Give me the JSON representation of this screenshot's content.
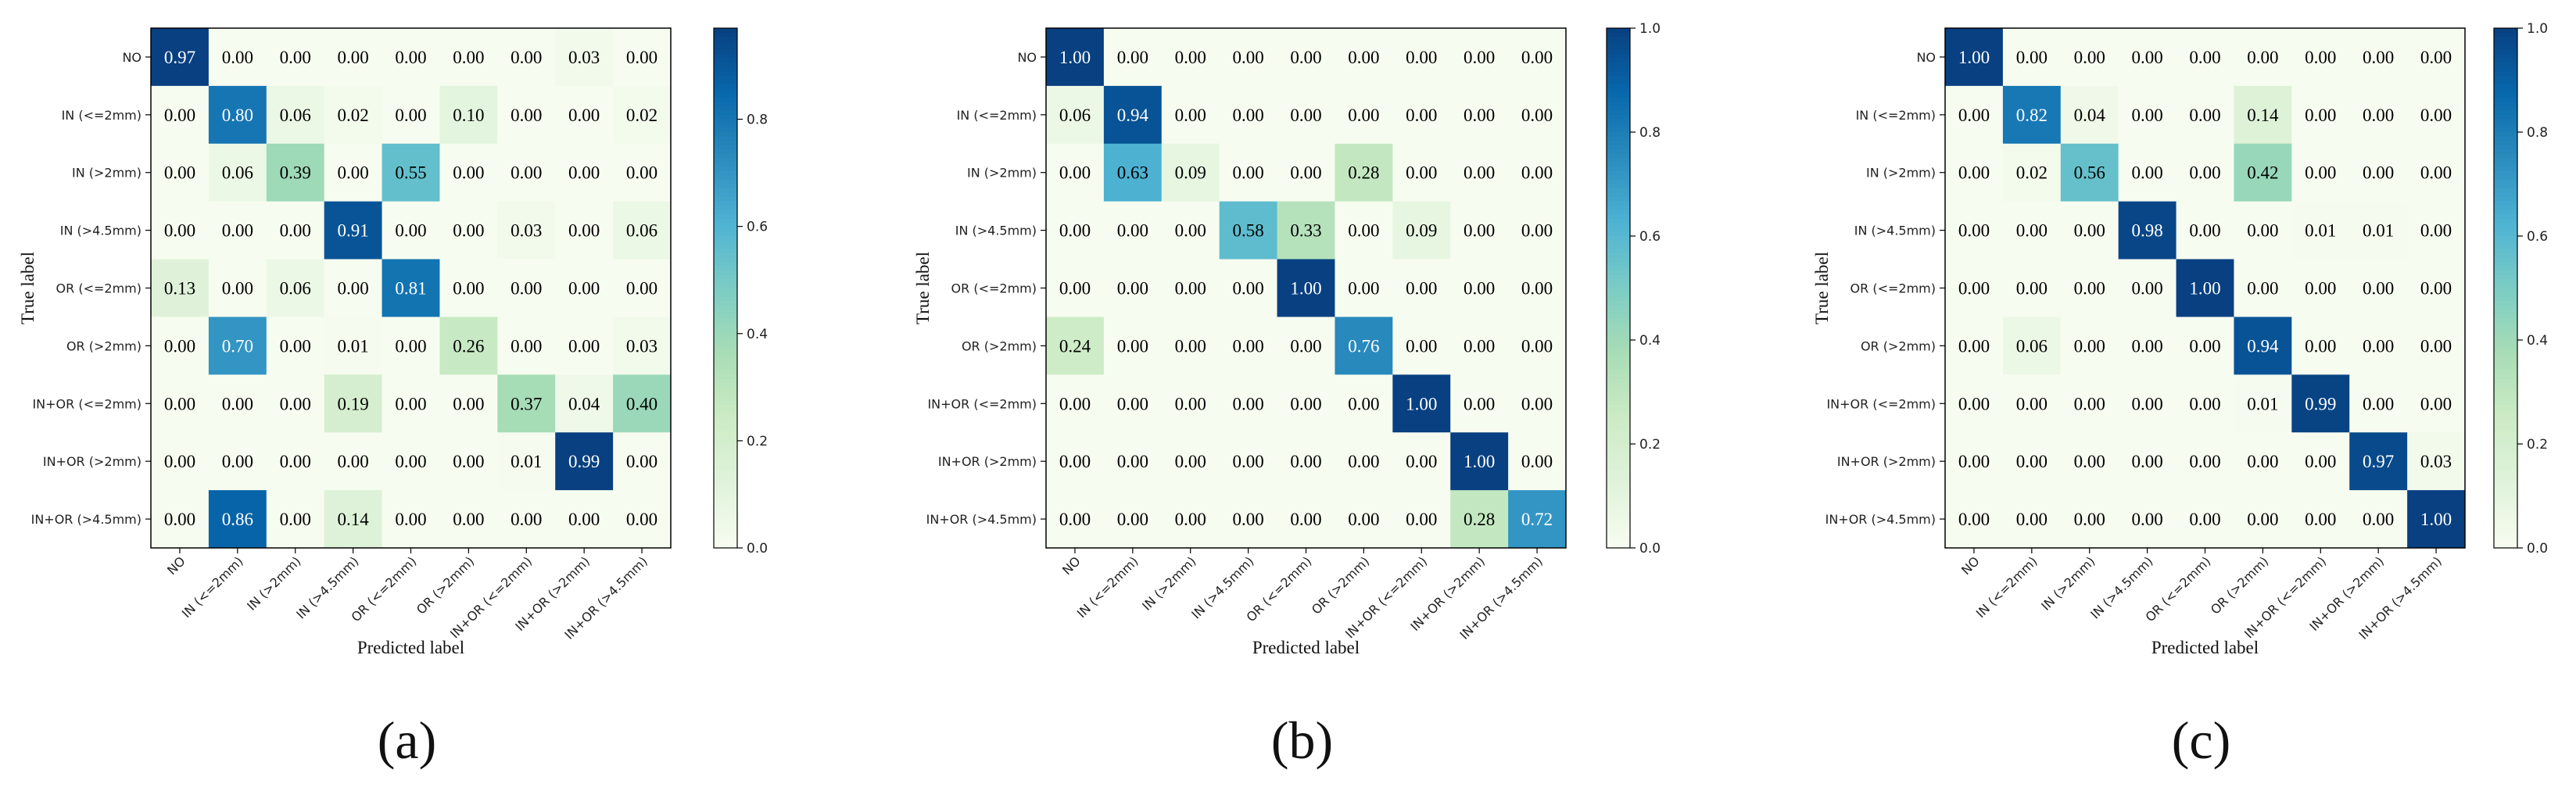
{
  "chart_data": [
    {
      "type": "heatmap",
      "panel_label": "(a)",
      "xlabel": "Predicted label",
      "ylabel": "True label",
      "classes": [
        "NO",
        "IN (<=2mm)",
        "IN (>2mm)",
        "IN (>4.5mm)",
        "OR (<=2mm)",
        "OR (>2mm)",
        "IN+OR (<=2mm)",
        "IN+OR (>2mm)",
        "IN+OR (>4.5mm)"
      ],
      "matrix": [
        [
          0.97,
          0.0,
          0.0,
          0.0,
          0.0,
          0.0,
          0.0,
          0.03,
          0.0
        ],
        [
          0.0,
          0.8,
          0.06,
          0.02,
          0.0,
          0.1,
          0.0,
          0.0,
          0.02
        ],
        [
          0.0,
          0.06,
          0.39,
          0.0,
          0.55,
          0.0,
          0.0,
          0.0,
          0.0
        ],
        [
          0.0,
          0.0,
          0.0,
          0.91,
          0.0,
          0.0,
          0.03,
          0.0,
          0.06
        ],
        [
          0.13,
          0.0,
          0.06,
          0.0,
          0.81,
          0.0,
          0.0,
          0.0,
          0.0
        ],
        [
          0.0,
          0.7,
          0.0,
          0.01,
          0.0,
          0.26,
          0.0,
          0.0,
          0.03
        ],
        [
          0.0,
          0.0,
          0.0,
          0.19,
          0.0,
          0.0,
          0.37,
          0.04,
          0.4
        ],
        [
          0.0,
          0.0,
          0.0,
          0.0,
          0.0,
          0.0,
          0.01,
          0.99,
          0.0
        ],
        [
          0.0,
          0.86,
          0.0,
          0.14,
          0.0,
          0.0,
          0.0,
          0.0,
          0.0
        ]
      ],
      "colorbar": {
        "min": 0.0,
        "max": 0.97,
        "ticks": [
          "0.0",
          "0.2",
          "0.4",
          "0.6",
          "0.8"
        ],
        "tick_values": [
          0.0,
          0.2,
          0.4,
          0.6,
          0.8
        ]
      }
    },
    {
      "type": "heatmap",
      "panel_label": "(b)",
      "xlabel": "Predicted label",
      "ylabel": "True label",
      "classes": [
        "NO",
        "IN (<=2mm)",
        "IN (>2mm)",
        "IN (>4.5mm)",
        "OR (<=2mm)",
        "OR (>2mm)",
        "IN+OR (<=2mm)",
        "IN+OR (>2mm)",
        "IN+OR (>4.5mm)"
      ],
      "matrix": [
        [
          1.0,
          0.0,
          0.0,
          0.0,
          0.0,
          0.0,
          0.0,
          0.0,
          0.0
        ],
        [
          0.06,
          0.94,
          0.0,
          0.0,
          0.0,
          0.0,
          0.0,
          0.0,
          0.0
        ],
        [
          0.0,
          0.63,
          0.09,
          0.0,
          0.0,
          0.28,
          0.0,
          0.0,
          0.0
        ],
        [
          0.0,
          0.0,
          0.0,
          0.58,
          0.33,
          0.0,
          0.09,
          0.0,
          0.0
        ],
        [
          0.0,
          0.0,
          0.0,
          0.0,
          1.0,
          0.0,
          0.0,
          0.0,
          0.0
        ],
        [
          0.24,
          0.0,
          0.0,
          0.0,
          0.0,
          0.76,
          0.0,
          0.0,
          0.0
        ],
        [
          0.0,
          0.0,
          0.0,
          0.0,
          0.0,
          0.0,
          1.0,
          0.0,
          0.0
        ],
        [
          0.0,
          0.0,
          0.0,
          0.0,
          0.0,
          0.0,
          0.0,
          1.0,
          0.0
        ],
        [
          0.0,
          0.0,
          0.0,
          0.0,
          0.0,
          0.0,
          0.0,
          0.28,
          0.72
        ]
      ],
      "colorbar": {
        "min": 0.0,
        "max": 1.0,
        "ticks": [
          "0.0",
          "0.2",
          "0.4",
          "0.6",
          "0.8",
          "1.0"
        ],
        "tick_values": [
          0.0,
          0.2,
          0.4,
          0.6,
          0.8,
          1.0
        ]
      }
    },
    {
      "type": "heatmap",
      "panel_label": "(c)",
      "xlabel": "Predicted label",
      "ylabel": "True label",
      "classes": [
        "NO",
        "IN (<=2mm)",
        "IN (>2mm)",
        "IN (>4.5mm)",
        "OR (<=2mm)",
        "OR (>2mm)",
        "IN+OR (<=2mm)",
        "IN+OR (>2mm)",
        "IN+OR (>4.5mm)"
      ],
      "matrix": [
        [
          1.0,
          0.0,
          0.0,
          0.0,
          0.0,
          0.0,
          0.0,
          0.0,
          0.0
        ],
        [
          0.0,
          0.82,
          0.04,
          0.0,
          0.0,
          0.14,
          0.0,
          0.0,
          0.0
        ],
        [
          0.0,
          0.02,
          0.56,
          0.0,
          0.0,
          0.42,
          0.0,
          0.0,
          0.0
        ],
        [
          0.0,
          0.0,
          0.0,
          0.98,
          0.0,
          0.0,
          0.01,
          0.01,
          0.0
        ],
        [
          0.0,
          0.0,
          0.0,
          0.0,
          1.0,
          0.0,
          0.0,
          0.0,
          0.0
        ],
        [
          0.0,
          0.06,
          0.0,
          0.0,
          0.0,
          0.94,
          0.0,
          0.0,
          0.0
        ],
        [
          0.0,
          0.0,
          0.0,
          0.0,
          0.0,
          0.01,
          0.99,
          0.0,
          0.0
        ],
        [
          0.0,
          0.0,
          0.0,
          0.0,
          0.0,
          0.0,
          0.0,
          0.97,
          0.03
        ],
        [
          0.0,
          0.0,
          0.0,
          0.0,
          0.0,
          0.0,
          0.0,
          0.0,
          1.0
        ]
      ],
      "colorbar": {
        "min": 0.0,
        "max": 1.0,
        "ticks": [
          "0.0",
          "0.2",
          "0.4",
          "0.6",
          "0.8",
          "1.0"
        ],
        "tick_values": [
          0.0,
          0.2,
          0.4,
          0.6,
          0.8,
          1.0
        ]
      }
    }
  ],
  "colormap": {
    "name": "GnBu",
    "stops": [
      "#f7fcf0",
      "#e0f3db",
      "#ccebc5",
      "#a8ddb5",
      "#7bccc4",
      "#4eb3d3",
      "#2b8cbe",
      "#0868ac",
      "#084081"
    ]
  }
}
